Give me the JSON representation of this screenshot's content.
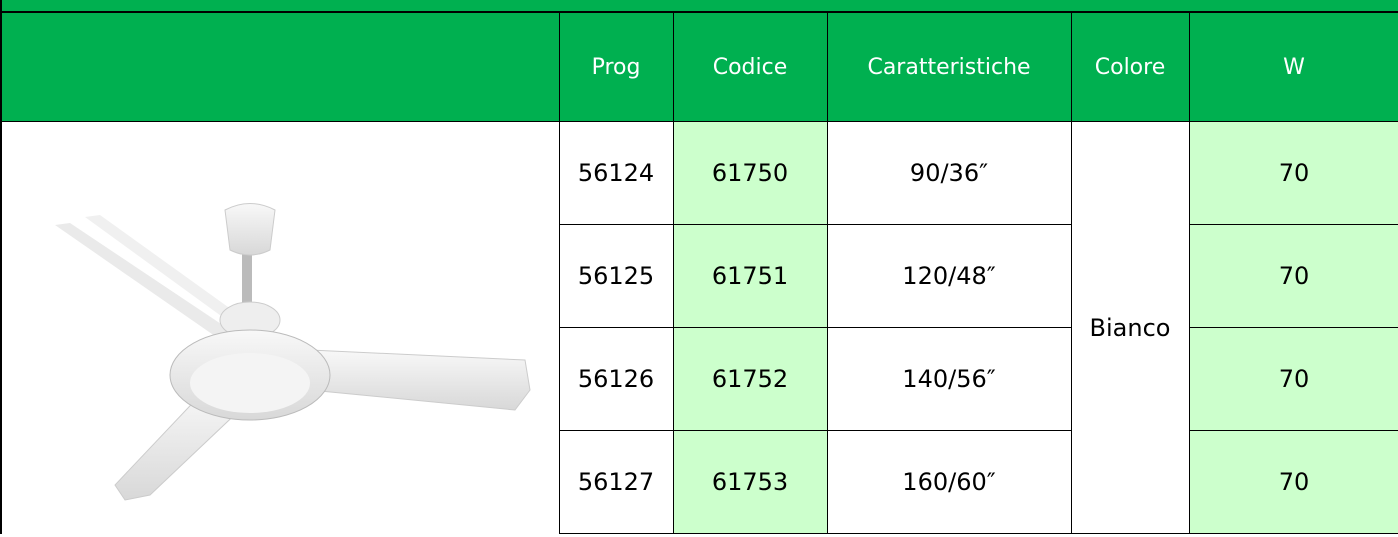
{
  "table": {
    "header": [
      "Prog",
      "Codice",
      "Caratteristiche",
      "Colore",
      "W"
    ],
    "rows": [
      [
        "56124",
        "61750",
        "90/36″",
        "70"
      ],
      [
        "56125",
        "61751",
        "120/48″",
        "70"
      ],
      [
        "56126",
        "61752",
        "140/56″",
        "70"
      ],
      [
        "56127",
        "61753",
        "160/60″",
        "70"
      ]
    ],
    "colore": "Bianco"
  }
}
